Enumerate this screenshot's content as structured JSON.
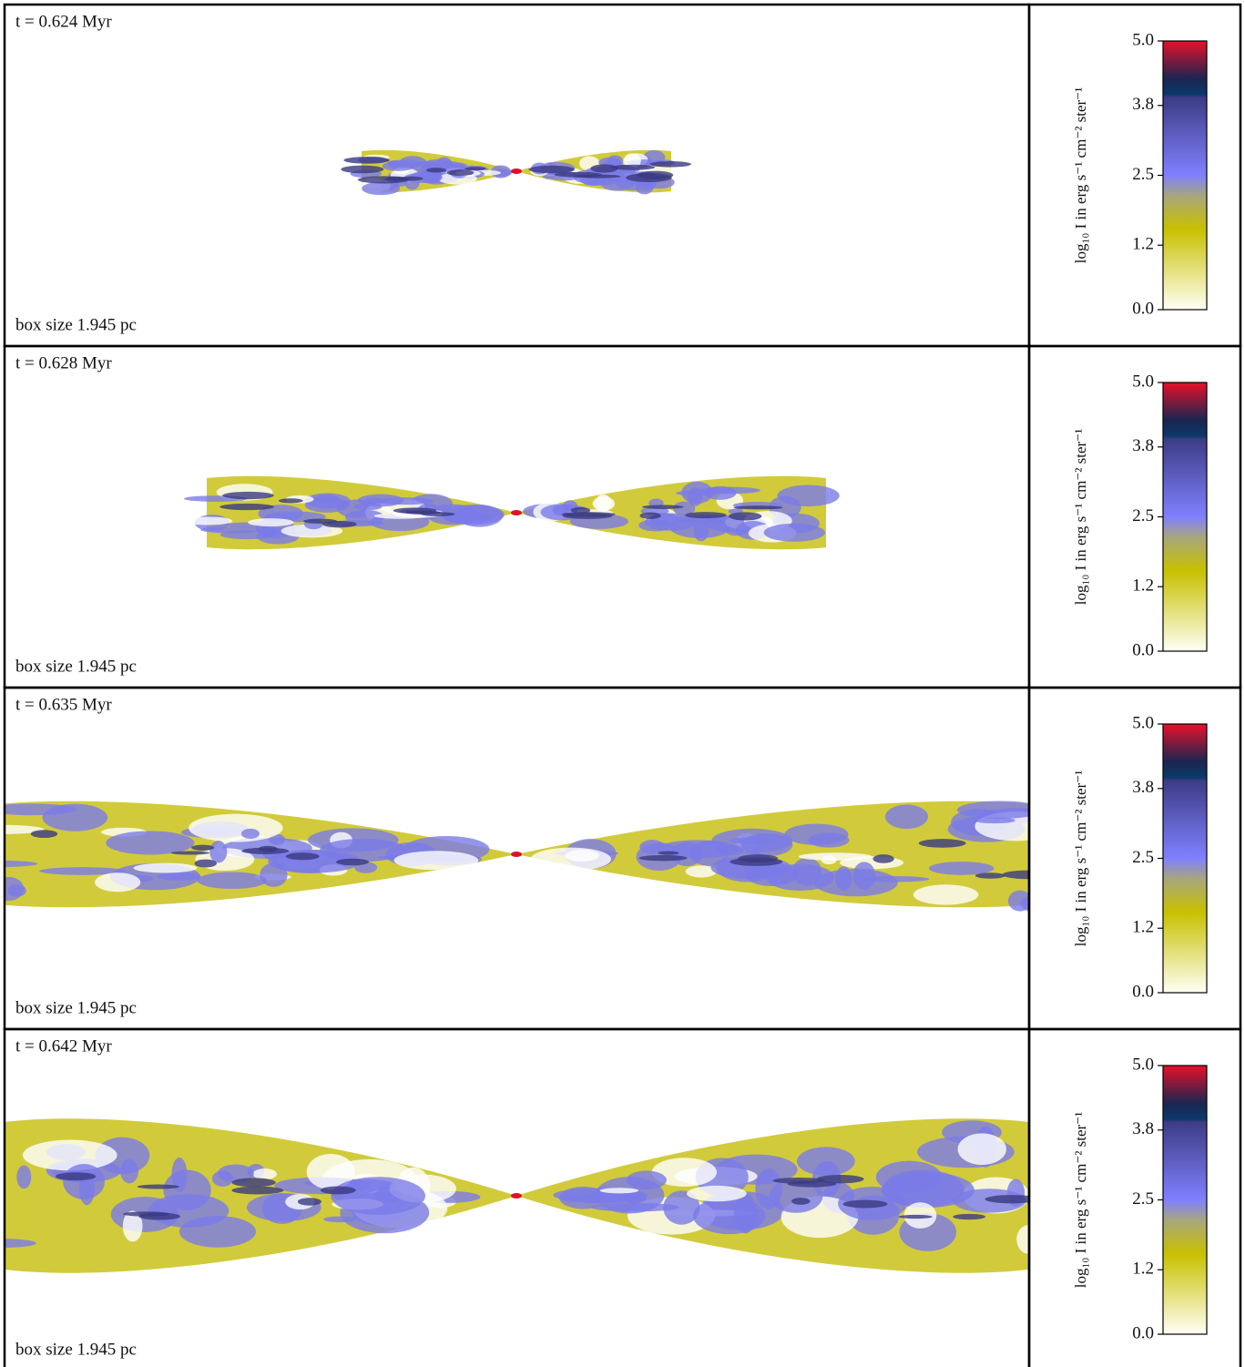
{
  "panels": [
    {
      "time_label": "t = 0.624 Myr",
      "box_label": "box size 1.945 pc",
      "colorbar": {
        "label": "log₁₀ I in erg s⁻¹ cm⁻² ster⁻¹",
        "lim": [
          0,
          5
        ],
        "ticks": [
          {
            "value": 0,
            "label": "0.0"
          },
          1.2,
          2.5,
          3.8,
          {
            "value": 5,
            "label": "5.0"
          }
        ]
      }
    },
    {
      "time_label": "t = 0.628 Myr",
      "box_label": "box size 1.945 pc",
      "colorbar": {
        "label": "log₁₀ I in erg s⁻¹ cm⁻² ster⁻¹",
        "lim": [
          0,
          5
        ],
        "ticks": [
          {
            "value": 0,
            "label": "0.0"
          },
          1.2,
          2.5,
          3.8,
          {
            "value": 5,
            "label": "5.0"
          }
        ]
      }
    },
    {
      "time_label": "t = 0.635 Myr",
      "box_label": "box size 1.945 pc",
      "colorbar": {
        "label": "log₁₀ I in erg s⁻¹ cm⁻² ster⁻¹",
        "lim": [
          0,
          5
        ],
        "ticks": [
          {
            "value": 0,
            "label": "0.0"
          },
          1.2,
          2.5,
          3.8,
          {
            "value": 5,
            "label": "5.0"
          }
        ]
      }
    },
    {
      "time_label": "t = 0.642 Myr",
      "box_label": "box size 1.945 pc",
      "colorbar": {
        "label": "log₁₀ I in erg s⁻¹ cm⁻² ster⁻¹",
        "lim": [
          0,
          5
        ],
        "ticks": [
          {
            "value": 0,
            "label": "0.0"
          },
          1.2,
          2.5,
          3.8,
          {
            "value": 5,
            "label": "5.0"
          }
        ]
      }
    }
  ]
}
